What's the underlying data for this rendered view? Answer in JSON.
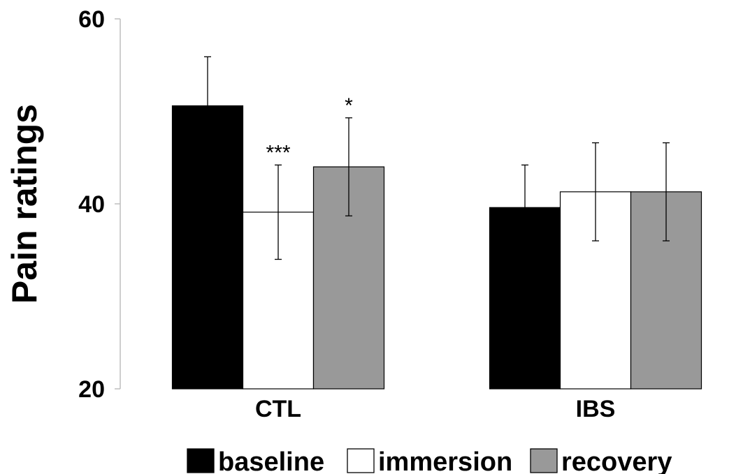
{
  "chart_data": {
    "type": "bar",
    "ylabel": "Pain ratings",
    "xlabel": "",
    "ylim": [
      20,
      60
    ],
    "yticks": [
      20,
      40,
      60
    ],
    "grid": false,
    "legend_position": "bottom",
    "categories": [
      "CTL",
      "IBS"
    ],
    "series": [
      {
        "name": "baseline",
        "color": "#000000",
        "values": [
          50.6,
          39.6
        ],
        "errors": [
          5.3,
          4.6
        ]
      },
      {
        "name": "immersion",
        "color": "#ffffff",
        "values": [
          39.1,
          41.3
        ],
        "errors": [
          5.1,
          5.3
        ]
      },
      {
        "name": "recovery",
        "color": "#999999",
        "values": [
          44.0,
          41.3
        ],
        "errors": [
          5.3,
          5.3
        ]
      }
    ],
    "annotations": [
      {
        "category": "CTL",
        "series": "immersion",
        "text": "***"
      },
      {
        "category": "CTL",
        "series": "recovery",
        "text": "*"
      }
    ]
  }
}
